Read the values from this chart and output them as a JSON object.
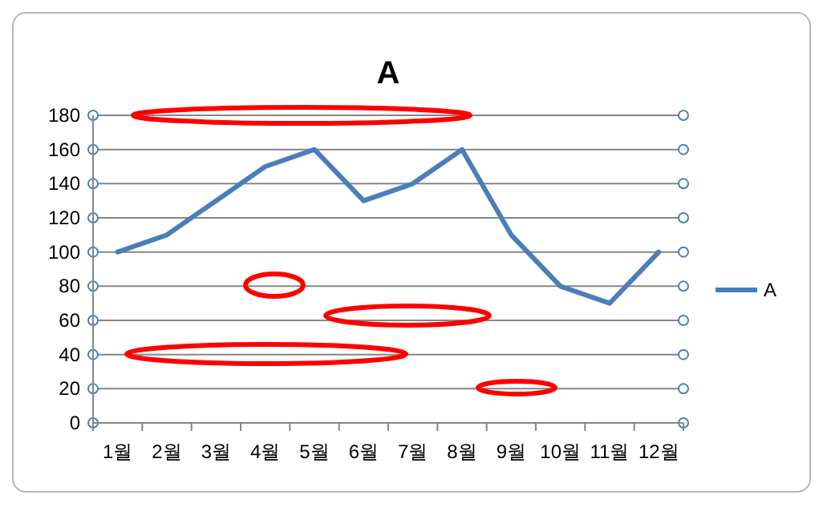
{
  "chart_data": {
    "type": "line",
    "title": "A",
    "categories": [
      "1월",
      "2월",
      "3월",
      "4월",
      "5월",
      "6월",
      "7월",
      "8월",
      "9월",
      "10월",
      "11월",
      "12월"
    ],
    "series": [
      {
        "name": "A",
        "color": "#4a7ebb",
        "values": [
          100,
          110,
          130,
          150,
          160,
          130,
          140,
          160,
          110,
          80,
          70,
          100
        ]
      }
    ],
    "ylim": [
      0,
      180
    ],
    "yticks": [
      0,
      20,
      40,
      60,
      80,
      100,
      120,
      140,
      160,
      180
    ],
    "grid": "y",
    "legend": "right",
    "marker": "none",
    "line_style": "solid"
  }
}
